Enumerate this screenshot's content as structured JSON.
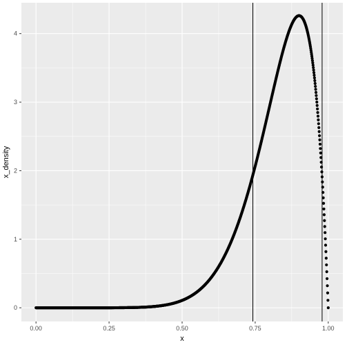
{
  "chart_data": {
    "type": "scatter",
    "title": "",
    "xlabel": "x",
    "ylabel": "x_density",
    "xlim": [
      -0.05,
      1.05
    ],
    "ylim": [
      -0.2,
      4.45
    ],
    "x_ticks": [
      0.0,
      0.25,
      0.5,
      0.75,
      1.0
    ],
    "x_tick_labels": [
      "0.00",
      "0.25",
      "0.50",
      "0.75",
      "1.00"
    ],
    "y_ticks": [
      0,
      1,
      2,
      3,
      4
    ],
    "y_tick_labels": [
      "0",
      "1",
      "2",
      "3",
      "4"
    ],
    "grid": true,
    "panel_background": "#ebebeb",
    "grid_color": "#ffffff",
    "point_color": "#000000",
    "distribution": {
      "family": "beta",
      "alpha": 10,
      "beta": 2
    },
    "n_points": 1000,
    "vertical_lines": [
      0.742,
      0.979
    ]
  }
}
